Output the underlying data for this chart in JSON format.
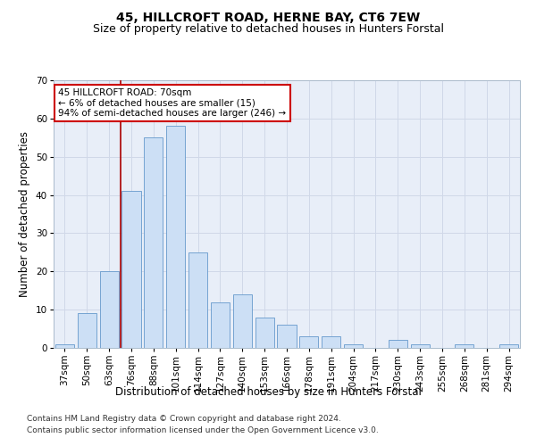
{
  "title": "45, HILLCROFT ROAD, HERNE BAY, CT6 7EW",
  "subtitle": "Size of property relative to detached houses in Hunters Forstal",
  "xlabel": "Distribution of detached houses by size in Hunters Forstal",
  "ylabel": "Number of detached properties",
  "bar_labels": [
    "37sqm",
    "50sqm",
    "63sqm",
    "76sqm",
    "88sqm",
    "101sqm",
    "114sqm",
    "127sqm",
    "140sqm",
    "153sqm",
    "166sqm",
    "178sqm",
    "191sqm",
    "204sqm",
    "217sqm",
    "230sqm",
    "243sqm",
    "255sqm",
    "268sqm",
    "281sqm",
    "294sqm"
  ],
  "bar_values": [
    1,
    9,
    20,
    41,
    55,
    58,
    25,
    12,
    14,
    8,
    6,
    3,
    3,
    1,
    0,
    2,
    1,
    0,
    1,
    0,
    1
  ],
  "bar_color": "#ccdff5",
  "bar_edge_color": "#6699cc",
  "grid_color": "#d0d8e8",
  "background_color": "#e8eef8",
  "annotation_text": "45 HILLCROFT ROAD: 70sqm\n← 6% of detached houses are smaller (15)\n94% of semi-detached houses are larger (246) →",
  "vline_x": 2.5,
  "vline_color": "#aa0000",
  "annotation_box_color": "#ffffff",
  "annotation_box_edge": "#cc0000",
  "footer_line1": "Contains HM Land Registry data © Crown copyright and database right 2024.",
  "footer_line2": "Contains public sector information licensed under the Open Government Licence v3.0.",
  "ylim": [
    0,
    70
  ],
  "yticks": [
    0,
    10,
    20,
    30,
    40,
    50,
    60,
    70
  ],
  "title_fontsize": 10,
  "subtitle_fontsize": 9,
  "axis_label_fontsize": 8.5,
  "tick_fontsize": 7.5,
  "footer_fontsize": 6.5,
  "annotation_fontsize": 7.5
}
